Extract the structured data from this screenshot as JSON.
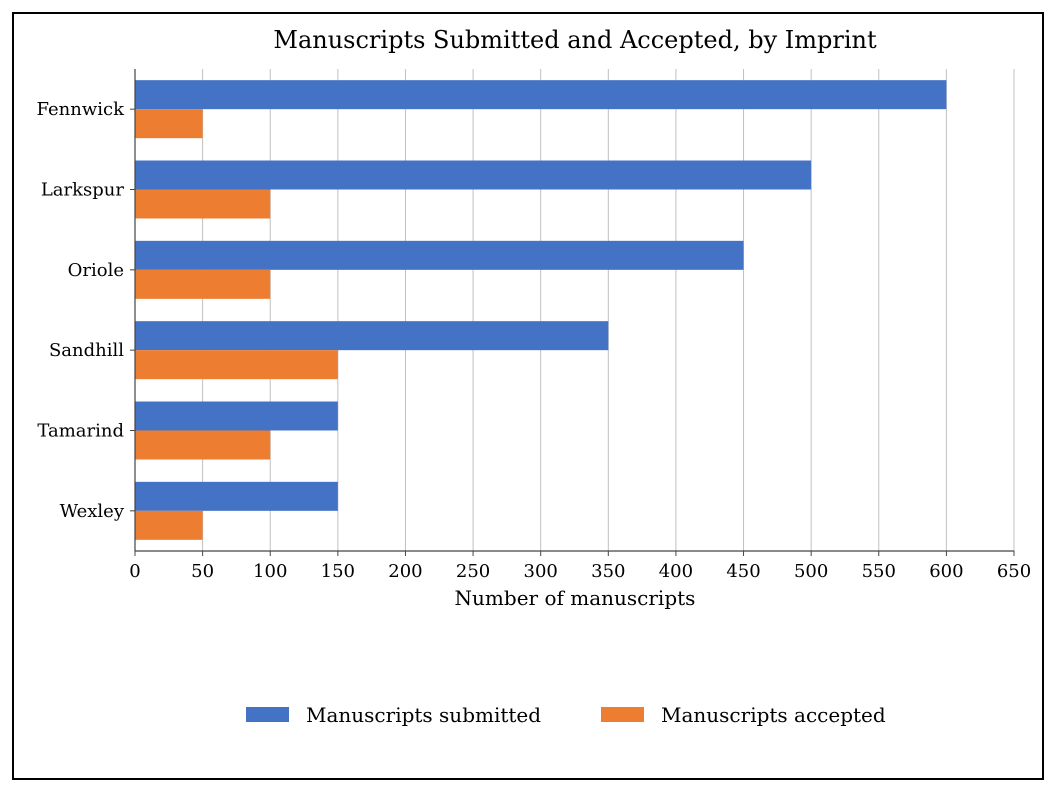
{
  "chart_data": {
    "type": "bar",
    "orientation": "horizontal",
    "title": "Manuscripts Submitted and Accepted, by Imprint",
    "xlabel": "Number of manuscripts",
    "ylabel": "",
    "categories": [
      "Fennwick",
      "Larkspur",
      "Oriole",
      "Sandhill",
      "Tamarind",
      "Wexley"
    ],
    "series": [
      {
        "name": "Manuscripts submitted",
        "color": "#4472C4",
        "values": [
          600,
          500,
          450,
          350,
          150,
          150
        ]
      },
      {
        "name": "Manuscripts accepted",
        "color": "#ED7D31",
        "values": [
          50,
          100,
          100,
          150,
          100,
          50
        ]
      }
    ],
    "xlim": [
      0,
      650
    ],
    "xticks": [
      0,
      50,
      100,
      150,
      200,
      250,
      300,
      350,
      400,
      450,
      500,
      550,
      600,
      650
    ],
    "grid": "vertical",
    "legend_position": "bottom"
  }
}
